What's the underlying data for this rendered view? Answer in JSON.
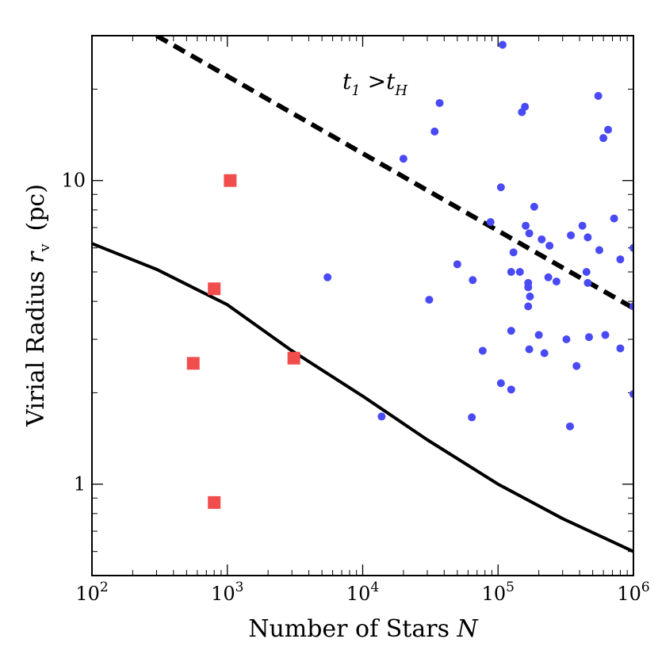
{
  "chart_data": {
    "type": "scatter",
    "scale": {
      "x": "log",
      "y": "log"
    },
    "xlim": [
      100,
      1000000
    ],
    "ylim": [
      0.5,
      30
    ],
    "xlabel": {
      "text": "Number of Stars ",
      "var": "N"
    },
    "ylabel": {
      "text": "Virial Radius ",
      "var": "r",
      "sub": "v",
      "unit": "(pc)"
    },
    "x_ticks": [
      {
        "value": 100,
        "base": "10",
        "exp": "2"
      },
      {
        "value": 1000,
        "base": "10",
        "exp": "3"
      },
      {
        "value": 10000,
        "base": "10",
        "exp": "4"
      },
      {
        "value": 100000,
        "base": "10",
        "exp": "5"
      },
      {
        "value": 1000000,
        "base": "10",
        "exp": "6"
      }
    ],
    "y_ticks": [
      {
        "value": 1,
        "label": "1"
      },
      {
        "value": 10,
        "label": "10"
      }
    ],
    "annotation": {
      "t": "t",
      "t_sub": "1",
      "op": " >",
      "th": "t",
      "th_sub": "H"
    },
    "colors": {
      "circles": "#4a4af5",
      "squares": "#f24d4d",
      "lines": "#000000"
    },
    "series": [
      {
        "name": "solid-curve",
        "kind": "line",
        "style": "solid",
        "points": [
          [
            100,
            6.2
          ],
          [
            300,
            5.1
          ],
          [
            1000,
            3.9
          ],
          [
            3000,
            2.75
          ],
          [
            10000,
            1.95
          ],
          [
            30000,
            1.4
          ],
          [
            100000,
            1.0
          ],
          [
            300000,
            0.77
          ],
          [
            1000000,
            0.6
          ]
        ]
      },
      {
        "name": "dashed-line",
        "kind": "line",
        "style": "dashed",
        "points": [
          [
            300,
            30
          ],
          [
            1000000,
            3.8
          ]
        ]
      },
      {
        "name": "squares",
        "kind": "square",
        "points": [
          [
            1050,
            10.0
          ],
          [
            800,
            4.4
          ],
          [
            560,
            2.5
          ],
          [
            3100,
            2.6
          ],
          [
            800,
            0.87
          ]
        ]
      },
      {
        "name": "circles",
        "kind": "circle",
        "points": [
          [
            108000,
            28
          ],
          [
            37000,
            18
          ],
          [
            550000,
            19
          ],
          [
            158000,
            17.5
          ],
          [
            150000,
            16.8
          ],
          [
            34000,
            14.5
          ],
          [
            650000,
            14.7
          ],
          [
            600000,
            13.8
          ],
          [
            20000,
            11.8
          ],
          [
            105000,
            9.5
          ],
          [
            185000,
            8.2
          ],
          [
            720000,
            7.5
          ],
          [
            88000,
            7.3
          ],
          [
            160000,
            7.1
          ],
          [
            420000,
            7.1
          ],
          [
            170000,
            6.7
          ],
          [
            345000,
            6.6
          ],
          [
            210000,
            6.4
          ],
          [
            460000,
            6.5
          ],
          [
            240000,
            6.1
          ],
          [
            1000000,
            6.0
          ],
          [
            560000,
            5.9
          ],
          [
            130000,
            5.8
          ],
          [
            800000,
            5.5
          ],
          [
            50000,
            5.3
          ],
          [
            125000,
            5.0
          ],
          [
            145000,
            5.0
          ],
          [
            450000,
            5.0
          ],
          [
            235000,
            4.8
          ],
          [
            5500,
            4.8
          ],
          [
            65000,
            4.7
          ],
          [
            270000,
            4.65
          ],
          [
            167000,
            4.6
          ],
          [
            460000,
            4.6
          ],
          [
            167000,
            4.45
          ],
          [
            172000,
            4.15
          ],
          [
            31000,
            4.05
          ],
          [
            167000,
            3.85
          ],
          [
            1000000,
            3.85
          ],
          [
            125000,
            3.2
          ],
          [
            200000,
            3.1
          ],
          [
            470000,
            3.05
          ],
          [
            620000,
            3.1
          ],
          [
            320000,
            3.0
          ],
          [
            800000,
            2.8
          ],
          [
            77000,
            2.75
          ],
          [
            170000,
            2.78
          ],
          [
            220000,
            2.7
          ],
          [
            380000,
            2.45
          ],
          [
            105000,
            2.15
          ],
          [
            125000,
            2.05
          ],
          [
            1000000,
            1.98
          ],
          [
            13800,
            1.67
          ],
          [
            64000,
            1.66
          ],
          [
            340000,
            1.55
          ]
        ]
      }
    ]
  }
}
